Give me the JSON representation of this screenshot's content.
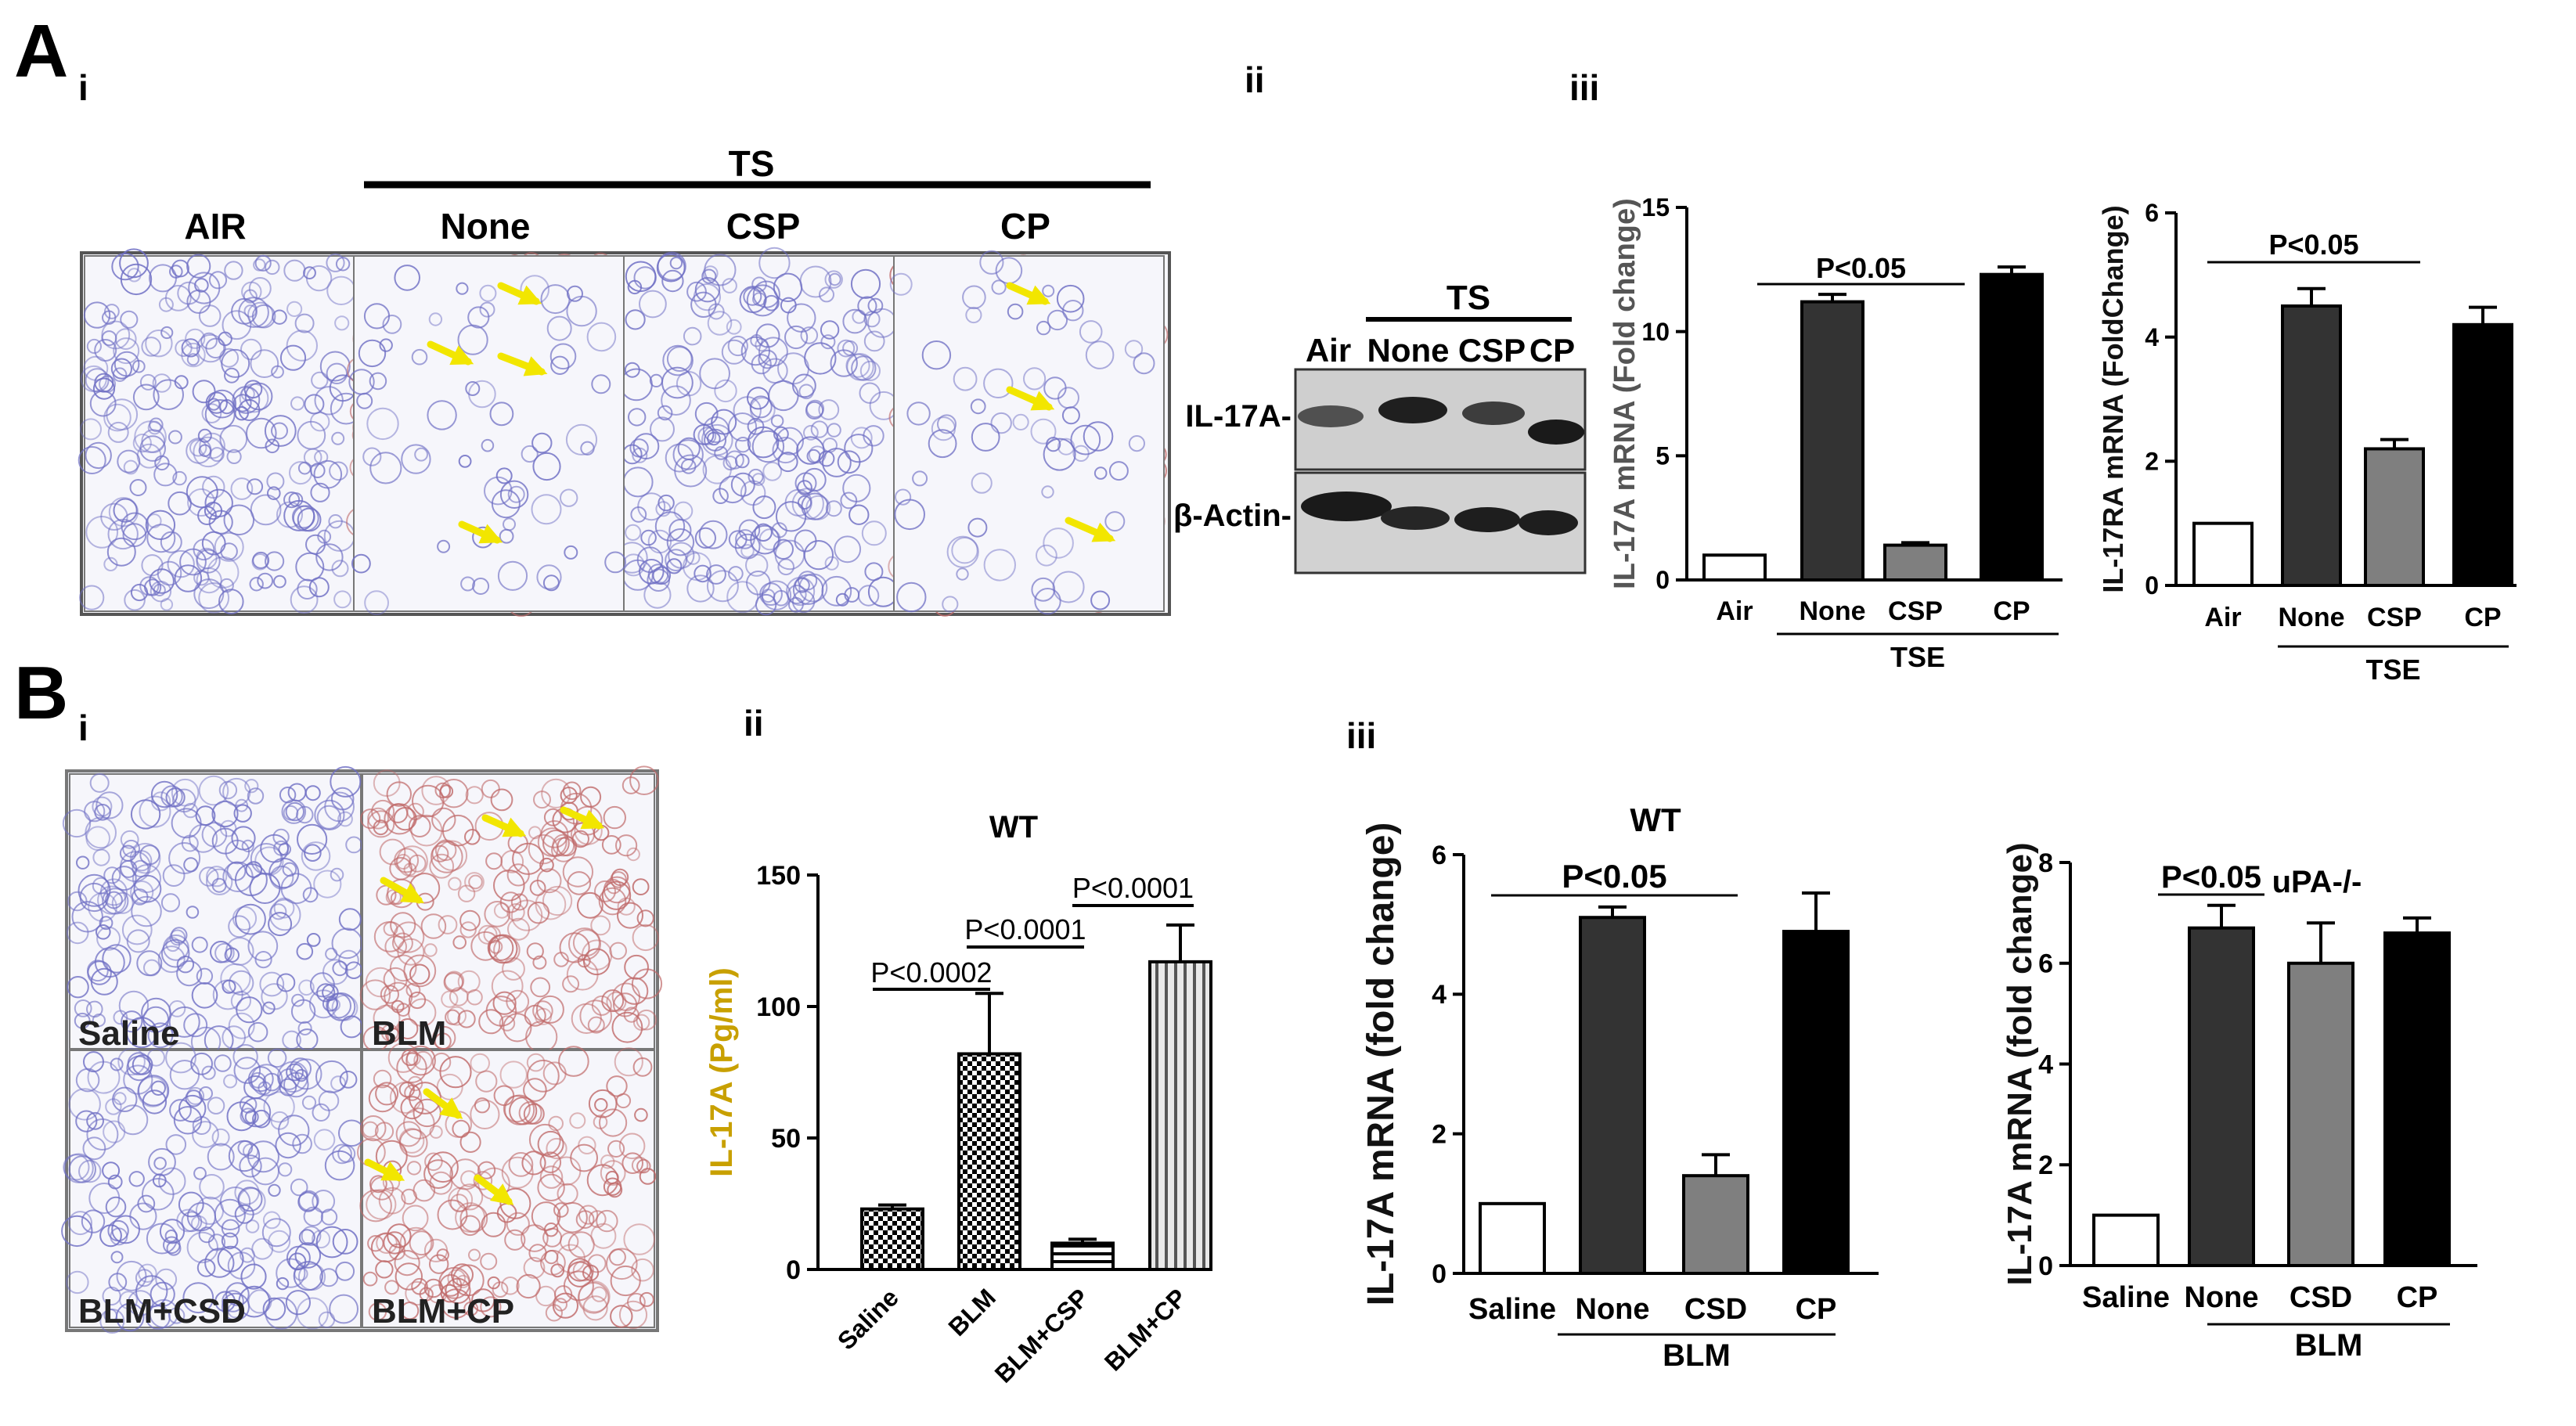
{
  "figure": {
    "panel_A": "A",
    "panel_B": "B",
    "sub_Ai": "i",
    "sub_Aii": "ii",
    "sub_Aiii": "iii",
    "sub_Bi": "i",
    "sub_Bii": "ii",
    "sub_Biii": "iii"
  },
  "histology_A": {
    "group": "TS",
    "labels": [
      "AIR",
      "None",
      "CSP",
      "CP"
    ]
  },
  "western": {
    "group": "TS",
    "lanes": [
      "Air",
      "None",
      "CSP",
      "CP"
    ],
    "rows": [
      "IL-17A-",
      "β-Actin-"
    ]
  },
  "histology_B": {
    "labels": [
      "Saline",
      "BLM",
      "BLM+CSD",
      "BLM+CP"
    ]
  },
  "colors": {
    "white": "#ffffff",
    "dark": "#333333",
    "grey": "#7f7f7f",
    "black": "#000000",
    "arrow": "#f2e600",
    "tissue_blue": "#6f6fc4",
    "tissue_red": "#c06a6a"
  },
  "chart_data": [
    {
      "id": "Aiii_left",
      "type": "bar",
      "categories": [
        "Air",
        "None",
        "CSP",
        "CP"
      ],
      "values": [
        1.0,
        11.2,
        1.4,
        12.3
      ],
      "errors": [
        0.0,
        0.3,
        0.1,
        0.3
      ],
      "ylabel": "IL-17A mRNA (Fold change)",
      "ylim": [
        0,
        15
      ],
      "ticks": [
        "0",
        "5",
        "10",
        "15"
      ],
      "tick_values": [
        0,
        5,
        10,
        15
      ],
      "group_label": "TSE",
      "pvalue": "P<0.05",
      "fills": [
        "white",
        "dark",
        "grey",
        "black"
      ]
    },
    {
      "id": "Aiii_right",
      "type": "bar",
      "categories": [
        "Air",
        "None",
        "CSP",
        "CP"
      ],
      "values": [
        1.0,
        4.5,
        2.2,
        4.2
      ],
      "errors": [
        0.0,
        0.28,
        0.15,
        0.28
      ],
      "ylabel": "IL-17RA mRNA (FoldChange)",
      "ylim": [
        0,
        6
      ],
      "ticks": [
        "0",
        "2",
        "4",
        "6"
      ],
      "tick_values": [
        0,
        2,
        4,
        6
      ],
      "group_label": "TSE",
      "pvalue": "P<0.05",
      "fills": [
        "white",
        "dark",
        "grey",
        "black"
      ]
    },
    {
      "id": "Bii",
      "type": "bar",
      "title": "WT",
      "categories": [
        "Saline",
        "BLM",
        "BLM+CSP",
        "BLM+CP"
      ],
      "values": [
        23,
        82,
        10,
        117
      ],
      "errors": [
        1.5,
        23,
        1.5,
        14
      ],
      "ylabel": "IL-17A (Pg/ml)",
      "ylim": [
        0,
        150
      ],
      "ticks": [
        "0",
        "50",
        "100",
        "150"
      ],
      "tick_values": [
        0,
        50,
        100,
        150
      ],
      "pvalues": [
        "P<0.0002",
        "P<0.0001",
        "P<0.0001"
      ],
      "fills": [
        "checker",
        "checker",
        "hstripe",
        "vstripe"
      ]
    },
    {
      "id": "Biii_left",
      "type": "bar",
      "title": "WT",
      "categories": [
        "Saline",
        "None",
        "CSD",
        "CP"
      ],
      "values": [
        1.0,
        5.1,
        1.4,
        4.9
      ],
      "errors": [
        0.0,
        0.15,
        0.3,
        0.55
      ],
      "ylabel": "IL-17A mRNA (fold change)",
      "ylim": [
        0,
        6
      ],
      "ticks": [
        "0",
        "2",
        "4",
        "6"
      ],
      "tick_values": [
        0,
        2,
        4,
        6
      ],
      "group_label": "BLM",
      "pvalue": "P<0.05",
      "fills": [
        "white",
        "dark",
        "grey",
        "black"
      ]
    },
    {
      "id": "Biii_right",
      "type": "bar",
      "title": "uPA-/-",
      "categories": [
        "Saline",
        "None",
        "CSD",
        "CP"
      ],
      "values": [
        1.0,
        6.7,
        6.0,
        6.6
      ],
      "errors": [
        0.0,
        0.45,
        0.8,
        0.3
      ],
      "ylabel": "IL-17A mRNA (fold change)",
      "ylim": [
        0,
        8
      ],
      "ticks": [
        "0",
        "2",
        "4",
        "6",
        "8"
      ],
      "tick_values": [
        0,
        2,
        4,
        6,
        8
      ],
      "group_label": "BLM",
      "pvalue": "P<0.05",
      "fills": [
        "white",
        "dark",
        "grey",
        "black"
      ]
    }
  ]
}
